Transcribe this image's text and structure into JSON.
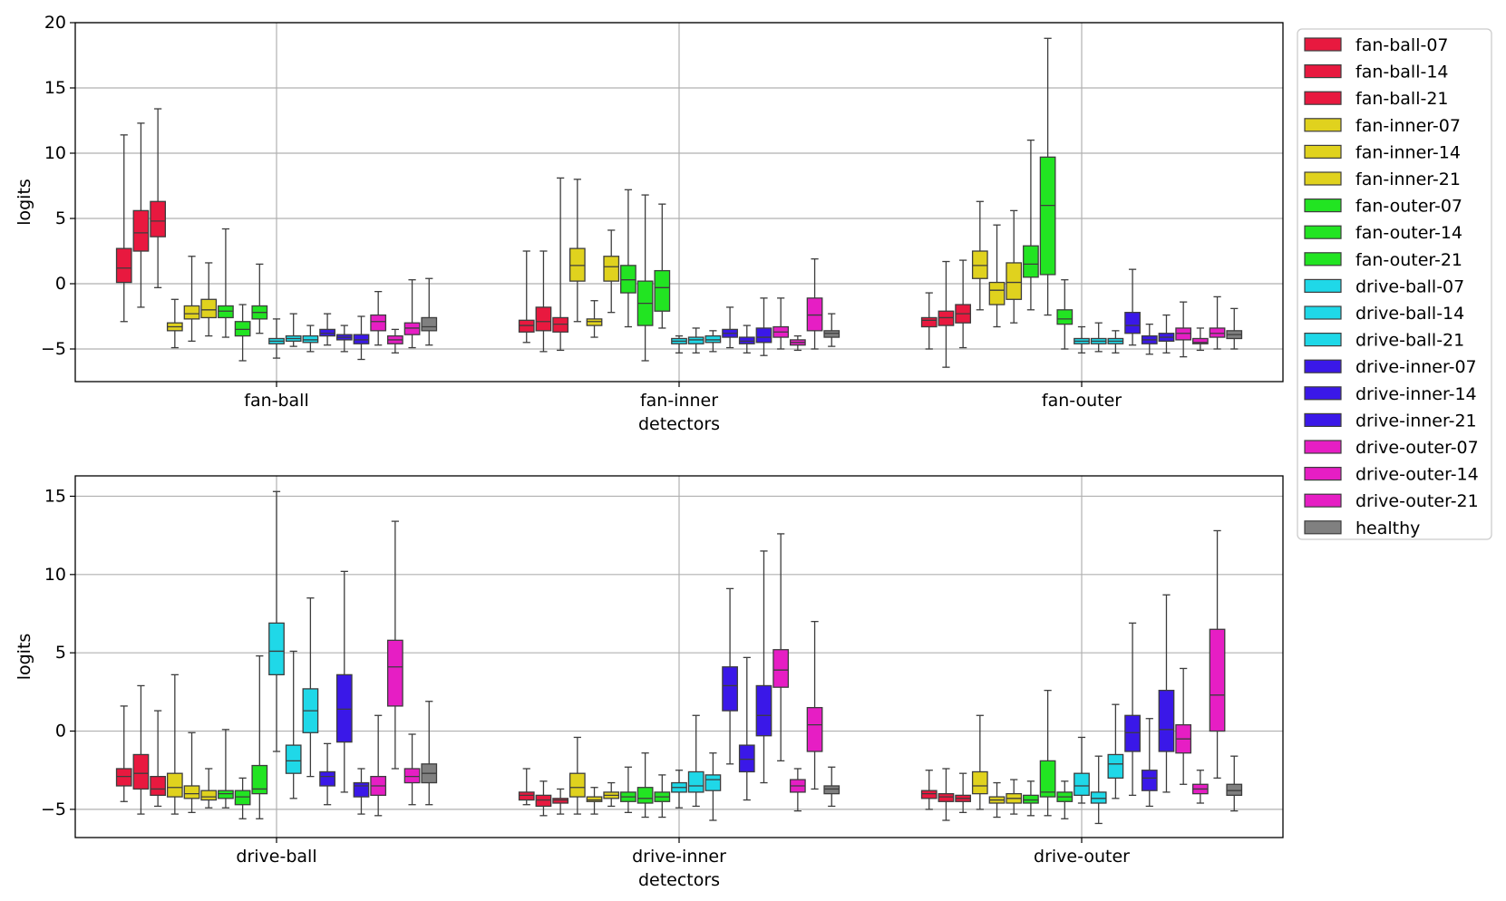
{
  "legend": {
    "entries": [
      {
        "label": "fan-ball-07",
        "color": "#e8193f"
      },
      {
        "label": "fan-ball-14",
        "color": "#e8193f"
      },
      {
        "label": "fan-ball-21",
        "color": "#e8193f"
      },
      {
        "label": "fan-inner-07",
        "color": "#e0d21e"
      },
      {
        "label": "fan-inner-14",
        "color": "#e0d21e"
      },
      {
        "label": "fan-inner-21",
        "color": "#e0d21e"
      },
      {
        "label": "fan-outer-07",
        "color": "#22e422"
      },
      {
        "label": "fan-outer-14",
        "color": "#22e422"
      },
      {
        "label": "fan-outer-21",
        "color": "#22e422"
      },
      {
        "label": "drive-ball-07",
        "color": "#1fd8e8"
      },
      {
        "label": "drive-ball-14",
        "color": "#1fd8e8"
      },
      {
        "label": "drive-ball-21",
        "color": "#1fd8e8"
      },
      {
        "label": "drive-inner-07",
        "color": "#3a18e8"
      },
      {
        "label": "drive-inner-14",
        "color": "#3a18e8"
      },
      {
        "label": "drive-inner-21",
        "color": "#3a18e8"
      },
      {
        "label": "drive-outer-07",
        "color": "#e61ec4"
      },
      {
        "label": "drive-outer-14",
        "color": "#e61ec4"
      },
      {
        "label": "drive-outer-21",
        "color": "#e61ec4"
      },
      {
        "label": "healthy",
        "color": "#808080"
      }
    ]
  },
  "chart_data": [
    {
      "type": "box",
      "xlabel": "detectors",
      "ylabel": "logits",
      "ylim": [
        -7.5,
        20
      ],
      "yticks": [
        -5,
        0,
        5,
        10,
        15,
        20
      ],
      "grid": true,
      "legend_position": "outside-right",
      "categories": [
        "fan-ball",
        "fan-inner",
        "fan-outer"
      ],
      "series_order": [
        "fan-ball-07",
        "fan-ball-14",
        "fan-ball-21",
        "fan-inner-07",
        "fan-inner-14",
        "fan-inner-21",
        "fan-outer-07",
        "fan-outer-14",
        "fan-outer-21",
        "drive-ball-07",
        "drive-ball-14",
        "drive-ball-21",
        "drive-inner-07",
        "drive-inner-14",
        "drive-inner-21",
        "drive-outer-07",
        "drive-outer-14",
        "drive-outer-21",
        "healthy"
      ],
      "boxes": [
        [
          [
            -2.9,
            0.1,
            1.2,
            2.7,
            11.4
          ],
          [
            -1.8,
            2.5,
            3.9,
            5.6,
            12.3
          ],
          [
            -0.3,
            3.6,
            4.8,
            6.3,
            13.4
          ],
          [
            -4.9,
            -3.6,
            -3.3,
            -3.0,
            -1.2
          ],
          [
            -4.4,
            -2.7,
            -2.3,
            -1.7,
            2.1
          ],
          [
            -4.0,
            -2.6,
            -2.0,
            -1.2,
            1.6
          ],
          [
            -4.1,
            -2.6,
            -2.1,
            -1.7,
            4.2
          ],
          [
            -5.9,
            -4.0,
            -3.5,
            -2.9,
            -1.6
          ],
          [
            -3.8,
            -2.7,
            -2.2,
            -1.7,
            1.5
          ],
          [
            -5.7,
            -4.6,
            -4.4,
            -4.2,
            -2.7
          ],
          [
            -4.8,
            -4.4,
            -4.2,
            -4.0,
            -2.3
          ],
          [
            -5.2,
            -4.5,
            -4.3,
            -4.0,
            -3.2
          ],
          [
            -4.7,
            -4.0,
            -3.8,
            -3.5,
            -2.3
          ],
          [
            -5.2,
            -4.3,
            -4.1,
            -3.9,
            -3.2
          ],
          [
            -5.8,
            -4.6,
            -4.3,
            -3.9,
            -2.5
          ],
          [
            -4.7,
            -3.6,
            -2.9,
            -2.4,
            -0.6
          ],
          [
            -5.3,
            -4.6,
            -4.3,
            -4.0,
            -3.5
          ],
          [
            -4.9,
            -3.9,
            -3.4,
            -3.0,
            0.3
          ],
          [
            -4.7,
            -3.6,
            -3.3,
            -2.6,
            0.4
          ]
        ],
        [
          [
            -4.5,
            -3.7,
            -3.2,
            -2.8,
            2.5
          ],
          [
            -5.2,
            -3.6,
            -2.9,
            -1.8,
            2.5
          ],
          [
            -5.1,
            -3.7,
            -3.1,
            -2.6,
            8.1
          ],
          [
            -2.9,
            0.2,
            1.4,
            2.7,
            8.0
          ],
          [
            -4.1,
            -3.2,
            -2.9,
            -2.7,
            -1.3
          ],
          [
            -2.2,
            0.2,
            1.3,
            2.1,
            4.1
          ],
          [
            -3.3,
            -0.7,
            0.3,
            1.4,
            7.2
          ],
          [
            -5.9,
            -3.2,
            -1.5,
            0.2,
            6.8
          ],
          [
            -3.4,
            -2.1,
            -0.3,
            1.0,
            6.1
          ],
          [
            -5.3,
            -4.6,
            -4.4,
            -4.2,
            -4.0
          ],
          [
            -5.3,
            -4.6,
            -4.3,
            -4.1,
            -3.4
          ],
          [
            -5.2,
            -4.5,
            -4.3,
            -4.0,
            -3.6
          ],
          [
            -4.9,
            -4.1,
            -3.8,
            -3.5,
            -1.8
          ],
          [
            -5.3,
            -4.6,
            -4.4,
            -4.1,
            -3.2
          ],
          [
            -5.5,
            -4.5,
            -4.1,
            -3.4,
            -1.1
          ],
          [
            -5.0,
            -4.1,
            -3.7,
            -3.3,
            -1.1
          ],
          [
            -5.1,
            -4.7,
            -4.5,
            -4.3,
            -4.0
          ],
          [
            -5.0,
            -3.6,
            -2.4,
            -1.1,
            1.9
          ],
          [
            -4.8,
            -4.1,
            -3.8,
            -3.6,
            -2.3
          ]
        ],
        [
          [
            -5.0,
            -3.3,
            -2.8,
            -2.6,
            -0.7
          ],
          [
            -6.4,
            -3.2,
            -2.6,
            -2.1,
            1.7
          ],
          [
            -4.9,
            -3.0,
            -2.3,
            -1.6,
            1.8
          ],
          [
            -2.0,
            0.4,
            1.4,
            2.5,
            6.3
          ],
          [
            -3.3,
            -1.6,
            -0.5,
            0.1,
            4.5
          ],
          [
            -3.0,
            -1.2,
            0.1,
            1.6,
            5.6
          ],
          [
            -2.0,
            0.5,
            1.5,
            2.9,
            11.0
          ],
          [
            -2.4,
            0.7,
            6.0,
            9.7,
            18.8
          ],
          [
            -5.0,
            -3.1,
            -2.7,
            -2.0,
            0.3
          ],
          [
            -5.3,
            -4.6,
            -4.4,
            -4.2,
            -3.3
          ],
          [
            -5.2,
            -4.6,
            -4.4,
            -4.2,
            -3.0
          ],
          [
            -5.3,
            -4.6,
            -4.4,
            -4.2,
            -3.6
          ],
          [
            -4.7,
            -3.8,
            -3.2,
            -2.2,
            1.1
          ],
          [
            -5.4,
            -4.6,
            -4.3,
            -4.0,
            -3.1
          ],
          [
            -5.3,
            -4.4,
            -4.1,
            -3.8,
            -2.4
          ],
          [
            -5.6,
            -4.3,
            -3.8,
            -3.4,
            -1.4
          ],
          [
            -5.1,
            -4.6,
            -4.5,
            -4.2,
            -3.4
          ],
          [
            -5.0,
            -4.1,
            -3.8,
            -3.4,
            -1.0
          ],
          [
            -5.0,
            -4.2,
            -3.9,
            -3.6,
            -1.9
          ]
        ]
      ]
    },
    {
      "type": "box",
      "xlabel": "detectors",
      "ylabel": "logits",
      "ylim": [
        -6.8,
        16.3
      ],
      "yticks": [
        -5,
        0,
        5,
        10,
        15
      ],
      "grid": true,
      "categories": [
        "drive-ball",
        "drive-inner",
        "drive-outer"
      ],
      "boxes": [
        [
          [
            -4.5,
            -3.5,
            -2.9,
            -2.4,
            1.6
          ],
          [
            -5.3,
            -3.7,
            -2.7,
            -1.5,
            2.9
          ],
          [
            -4.8,
            -4.1,
            -3.7,
            -2.9,
            1.3
          ],
          [
            -5.3,
            -4.2,
            -3.6,
            -2.7,
            3.6
          ],
          [
            -5.2,
            -4.3,
            -4.0,
            -3.5,
            -0.1
          ],
          [
            -4.9,
            -4.4,
            -4.2,
            -3.8,
            -2.4
          ],
          [
            -4.9,
            -4.3,
            -4.0,
            -3.8,
            0.1
          ],
          [
            -5.6,
            -4.7,
            -4.2,
            -3.8,
            -3.0
          ],
          [
            -5.6,
            -4.0,
            -3.7,
            -2.2,
            4.8
          ],
          [
            -1.3,
            3.6,
            5.1,
            6.9,
            15.3
          ],
          [
            -4.3,
            -2.7,
            -1.9,
            -0.9,
            5.1
          ],
          [
            -2.9,
            -0.1,
            1.3,
            2.7,
            8.5
          ],
          [
            -4.7,
            -3.5,
            -2.9,
            -2.6,
            -0.8
          ],
          [
            -3.9,
            -0.7,
            1.4,
            3.6,
            10.2
          ],
          [
            -5.3,
            -4.2,
            -3.5,
            -3.3,
            -2.4
          ],
          [
            -5.4,
            -4.1,
            -3.5,
            -2.9,
            1.0
          ],
          [
            -2.4,
            1.6,
            4.1,
            5.8,
            13.4
          ],
          [
            -4.7,
            -3.3,
            -2.9,
            -2.4,
            -0.2
          ],
          [
            -4.7,
            -3.3,
            -2.7,
            -2.1,
            1.9
          ]
        ],
        [
          [
            -4.7,
            -4.4,
            -4.1,
            -3.9,
            -2.4
          ],
          [
            -5.4,
            -4.8,
            -4.4,
            -4.1,
            -3.2
          ],
          [
            -5.3,
            -4.6,
            -4.4,
            -4.3,
            -3.7
          ],
          [
            -5.3,
            -4.2,
            -3.6,
            -2.7,
            -0.4
          ],
          [
            -5.3,
            -4.5,
            -4.4,
            -4.2,
            -3.6
          ],
          [
            -4.8,
            -4.3,
            -4.1,
            -3.9,
            -3.3
          ],
          [
            -5.2,
            -4.5,
            -4.2,
            -3.9,
            -2.3
          ],
          [
            -5.5,
            -4.6,
            -4.3,
            -3.6,
            -1.4
          ],
          [
            -5.5,
            -4.5,
            -4.2,
            -3.9,
            -2.8
          ],
          [
            -4.9,
            -3.9,
            -3.6,
            -3.3,
            -2.5
          ],
          [
            -4.8,
            -3.9,
            -3.5,
            -2.6,
            1.0
          ],
          [
            -5.7,
            -3.8,
            -3.1,
            -2.8,
            -1.4
          ],
          [
            -2.1,
            1.3,
            2.9,
            4.1,
            9.1
          ],
          [
            -4.4,
            -2.6,
            -1.8,
            -0.9,
            4.7
          ],
          [
            -3.3,
            -0.3,
            1.0,
            2.9,
            11.5
          ],
          [
            -1.9,
            2.8,
            3.9,
            5.2,
            12.6
          ],
          [
            -5.1,
            -3.9,
            -3.5,
            -3.1,
            -2.4
          ],
          [
            -3.7,
            -1.3,
            0.4,
            1.5,
            7.0
          ],
          [
            -4.8,
            -4.0,
            -3.7,
            -3.5,
            -2.3
          ]
        ],
        [
          [
            -5.0,
            -4.3,
            -4.0,
            -3.8,
            -2.5
          ],
          [
            -5.7,
            -4.5,
            -4.2,
            -4.0,
            -2.4
          ],
          [
            -5.2,
            -4.5,
            -4.3,
            -4.1,
            -2.7
          ],
          [
            -5.0,
            -4.0,
            -3.5,
            -2.6,
            1.0
          ],
          [
            -5.5,
            -4.6,
            -4.4,
            -4.2,
            -3.3
          ],
          [
            -5.3,
            -4.6,
            -4.3,
            -4.0,
            -3.1
          ],
          [
            -5.4,
            -4.6,
            -4.4,
            -4.1,
            -3.2
          ],
          [
            -5.4,
            -4.2,
            -3.9,
            -1.9,
            2.6
          ],
          [
            -5.6,
            -4.5,
            -4.2,
            -3.9,
            -3.2
          ],
          [
            -4.6,
            -4.1,
            -3.5,
            -2.7,
            -0.4
          ],
          [
            -5.9,
            -4.6,
            -4.3,
            -3.9,
            -1.6
          ],
          [
            -4.3,
            -3.0,
            -2.1,
            -1.5,
            1.7
          ],
          [
            -4.1,
            -1.3,
            -0.1,
            1.0,
            6.9
          ],
          [
            -4.8,
            -3.8,
            -3.0,
            -2.5,
            0.8
          ],
          [
            -3.9,
            -1.3,
            0.1,
            2.6,
            8.7
          ],
          [
            -3.4,
            -1.4,
            -0.5,
            0.4,
            4.0
          ],
          [
            -4.6,
            -4.0,
            -3.7,
            -3.4,
            -2.5
          ],
          [
            -3.0,
            0.0,
            2.3,
            6.5,
            12.8
          ],
          [
            -5.1,
            -4.1,
            -3.8,
            -3.4,
            -1.6
          ]
        ]
      ]
    }
  ]
}
